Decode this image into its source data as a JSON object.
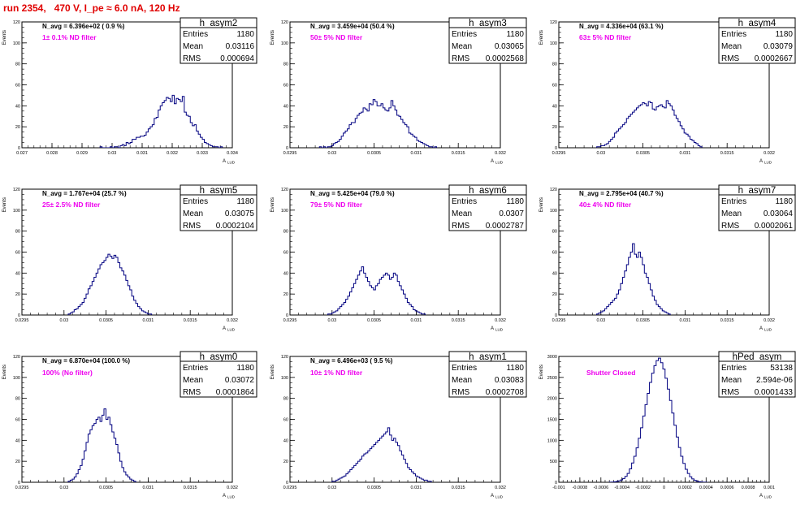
{
  "title": "run 2354,   470 V, I_pe ≈ 6.0 nA, 120 Hz",
  "colors": {
    "histogram": "#000080",
    "title": "#e00000",
    "filter_label": "#ee00ee"
  },
  "y_axis_label": "Events",
  "x_axis_label": "A",
  "x_axis_label_sub": "LUD",
  "chart_data": [
    {
      "type": "histogram",
      "name": "h_asym2",
      "navg_text": "N_avg = 6.396e+02 ( 0.9 %)",
      "filter_text": "1± 0.1% ND filter",
      "stats": [
        [
          "Entries",
          "1180"
        ],
        [
          "Mean",
          "0.03116"
        ],
        [
          "RMS",
          "0.000694"
        ]
      ],
      "xlim": [
        0.027,
        0.034
      ],
      "ylim": [
        0,
        120
      ],
      "xticks": [
        0.027,
        0.028,
        0.029,
        0.03,
        0.031,
        0.032,
        0.033,
        0.034
      ],
      "xtick_labels": [
        "0.027",
        "0.028",
        "0.029",
        "0.03",
        "0.031",
        "0.032",
        "0.033",
        "0.034"
      ],
      "yticks": [
        0,
        20,
        40,
        60,
        80,
        100,
        120
      ],
      "ytick_labels": [
        "0",
        "20",
        "40",
        "60",
        "80",
        "100",
        "120"
      ],
      "bin_start": 0.0296,
      "bin_width": 6.67e-05,
      "counts": [
        1,
        0,
        0,
        0,
        0,
        1,
        0,
        1,
        1,
        0,
        2,
        3,
        2,
        5,
        4,
        5,
        8,
        8,
        10,
        10,
        11,
        11,
        12,
        15,
        18,
        20,
        22,
        28,
        29,
        36,
        40,
        43,
        45,
        48,
        47,
        44,
        50,
        42,
        47,
        46,
        44,
        49,
        34,
        31,
        30,
        24,
        21,
        22,
        16,
        13,
        10,
        8,
        5,
        4,
        3,
        2,
        1,
        1,
        1,
        0,
        1
      ]
    },
    {
      "type": "histogram",
      "name": "h_asym3",
      "navg_text": "N_avg = 3.459e+04 (50.4 %)",
      "filter_text": "50± 5% ND filter",
      "stats": [
        [
          "Entries",
          "1180"
        ],
        [
          "Mean",
          "0.03065"
        ],
        [
          "RMS",
          "0.0002568"
        ]
      ],
      "xlim": [
        0.0295,
        0.032
      ],
      "ylim": [
        0,
        120
      ],
      "xticks": [
        0.0295,
        0.03,
        0.0305,
        0.031,
        0.0315,
        0.032
      ],
      "xtick_labels": [
        "0.0295",
        "0.03",
        "0.0305",
        "0.031",
        "0.0315",
        "0.032"
      ],
      "yticks": [
        0,
        20,
        40,
        60,
        80,
        100,
        120
      ],
      "ytick_labels": [
        "0",
        "20",
        "40",
        "60",
        "80",
        "100",
        "120"
      ],
      "bin_start": 0.02985,
      "bin_width": 2.36e-05,
      "counts": [
        1,
        0,
        1,
        0,
        1,
        1,
        2,
        4,
        5,
        6,
        8,
        11,
        14,
        16,
        18,
        22,
        24,
        24,
        28,
        31,
        33,
        34,
        38,
        37,
        35,
        42,
        41,
        46,
        44,
        40,
        40,
        42,
        38,
        36,
        35,
        38,
        45,
        40,
        36,
        31,
        30,
        27,
        24,
        22,
        20,
        14,
        13,
        11,
        10,
        7,
        6,
        5,
        4,
        3,
        2,
        1,
        1,
        0,
        1
      ]
    },
    {
      "type": "histogram",
      "name": "h_asym4",
      "navg_text": "N_avg = 4.336e+04 (63.1 %)",
      "filter_text": "63± 5% ND filter",
      "stats": [
        [
          "Entries",
          "1180"
        ],
        [
          "Mean",
          "0.03079"
        ],
        [
          "RMS",
          "0.0002667"
        ]
      ],
      "xlim": [
        0.0295,
        0.032
      ],
      "ylim": [
        0,
        120
      ],
      "xticks": [
        0.0295,
        0.03,
        0.0305,
        0.031,
        0.0315,
        0.032
      ],
      "xtick_labels": [
        "0.0295",
        "0.03",
        "0.0305",
        "0.031",
        "0.0315",
        "0.032"
      ],
      "yticks": [
        0,
        20,
        40,
        60,
        80,
        100,
        120
      ],
      "ytick_labels": [
        "0",
        "20",
        "40",
        "60",
        "80",
        "100",
        "120"
      ],
      "bin_start": 0.02995,
      "bin_width": 2.36e-05,
      "counts": [
        1,
        1,
        2,
        2,
        3,
        4,
        6,
        8,
        10,
        14,
        16,
        18,
        20,
        22,
        24,
        28,
        30,
        32,
        34,
        36,
        38,
        40,
        41,
        43,
        42,
        40,
        44,
        43,
        37,
        36,
        39,
        40,
        41,
        39,
        38,
        45,
        42,
        40,
        36,
        31,
        28,
        25,
        21,
        18,
        14,
        13,
        11,
        8,
        7,
        5,
        4,
        2,
        1
      ]
    },
    {
      "type": "histogram",
      "name": "h_asym5",
      "navg_text": "N_avg = 1.767e+04 (25.7 %)",
      "filter_text": "25± 2.5% ND filter",
      "stats": [
        [
          "Entries",
          "1180"
        ],
        [
          "Mean",
          "0.03075"
        ],
        [
          "RMS",
          "0.0002104"
        ]
      ],
      "xlim": [
        0.0295,
        0.032
      ],
      "ylim": [
        0,
        120
      ],
      "xticks": [
        0.0295,
        0.03,
        0.0305,
        0.031,
        0.0315,
        0.032
      ],
      "xtick_labels": [
        "0.0295",
        "0.03",
        "0.0305",
        "0.031",
        "0.0315",
        "0.032"
      ],
      "yticks": [
        0,
        20,
        40,
        60,
        80,
        100,
        120
      ],
      "ytick_labels": [
        "0",
        "20",
        "40",
        "60",
        "80",
        "100",
        "120"
      ],
      "bin_start": 0.03005,
      "bin_width": 2.36e-05,
      "counts": [
        1,
        2,
        3,
        5,
        6,
        8,
        10,
        12,
        16,
        20,
        25,
        28,
        32,
        36,
        40,
        44,
        48,
        50,
        52,
        55,
        58,
        56,
        54,
        57,
        55,
        50,
        45,
        42,
        38,
        33,
        28,
        24,
        18,
        14,
        11,
        8,
        6,
        4,
        3,
        2,
        1,
        1
      ]
    },
    {
      "type": "histogram",
      "name": "h_asym6",
      "navg_text": "N_avg = 5.425e+04 (79.0 %)",
      "filter_text": "79± 5% ND filter",
      "stats": [
        [
          "Entries",
          "1180"
        ],
        [
          "Mean",
          "0.0307"
        ],
        [
          "RMS",
          "0.0002787"
        ]
      ],
      "xlim": [
        0.0295,
        0.032
      ],
      "ylim": [
        0,
        120
      ],
      "xticks": [
        0.0295,
        0.03,
        0.0305,
        0.031,
        0.0315,
        0.032
      ],
      "xtick_labels": [
        "0.0295",
        "0.03",
        "0.0305",
        "0.031",
        "0.0315",
        "0.032"
      ],
      "yticks": [
        0,
        20,
        40,
        60,
        80,
        100,
        120
      ],
      "ytick_labels": [
        "0",
        "20",
        "40",
        "60",
        "80",
        "100",
        "120"
      ],
      "bin_start": 0.02995,
      "bin_width": 2.36e-05,
      "counts": [
        1,
        1,
        2,
        3,
        4,
        6,
        8,
        10,
        12,
        15,
        18,
        22,
        26,
        30,
        34,
        38,
        42,
        46,
        40,
        36,
        32,
        28,
        26,
        24,
        28,
        30,
        34,
        36,
        38,
        40,
        38,
        34,
        36,
        40,
        38,
        32,
        28,
        24,
        20,
        16,
        12,
        10,
        8,
        5,
        4,
        3,
        2,
        1,
        1
      ]
    },
    {
      "type": "histogram",
      "name": "h_asym7",
      "navg_text": "N_avg = 2.795e+04 (40.7 %)",
      "filter_text": "40± 4% ND filter",
      "stats": [
        [
          "Entries",
          "1180"
        ],
        [
          "Mean",
          "0.03064"
        ],
        [
          "RMS",
          "0.0002061"
        ]
      ],
      "xlim": [
        0.0295,
        0.032
      ],
      "ylim": [
        0,
        120
      ],
      "xticks": [
        0.0295,
        0.03,
        0.0305,
        0.031,
        0.0315,
        0.032
      ],
      "xtick_labels": [
        "0.0295",
        "0.03",
        "0.0305",
        "0.031",
        "0.0315",
        "0.032"
      ],
      "yticks": [
        0,
        20,
        40,
        60,
        80,
        100,
        120
      ],
      "ytick_labels": [
        "0",
        "20",
        "40",
        "60",
        "80",
        "100",
        "120"
      ],
      "bin_start": 0.02995,
      "bin_width": 2.36e-05,
      "counts": [
        1,
        2,
        3,
        4,
        6,
        8,
        10,
        12,
        14,
        16,
        20,
        24,
        30,
        36,
        42,
        48,
        55,
        60,
        68,
        58,
        55,
        60,
        55,
        48,
        40,
        36,
        30,
        24,
        18,
        14,
        10,
        8,
        6,
        4,
        3,
        2,
        1
      ]
    },
    {
      "type": "histogram",
      "name": "h_asym0",
      "navg_text": "N_avg = 6.870e+04 (100.0 %)",
      "filter_text": "100% (No filter)",
      "stats": [
        [
          "Entries",
          "1180"
        ],
        [
          "Mean",
          "0.03072"
        ],
        [
          "RMS",
          "0.0001864"
        ]
      ],
      "xlim": [
        0.0295,
        0.032
      ],
      "ylim": [
        0,
        120
      ],
      "xticks": [
        0.0295,
        0.03,
        0.0305,
        0.031,
        0.0315,
        0.032
      ],
      "xtick_labels": [
        "0.0295",
        "0.03",
        "0.0305",
        "0.031",
        "0.0315",
        "0.032"
      ],
      "yticks": [
        0,
        20,
        40,
        60,
        80,
        100,
        120
      ],
      "ytick_labels": [
        "0",
        "20",
        "40",
        "60",
        "80",
        "100",
        "120"
      ],
      "bin_start": 0.03005,
      "bin_width": 2.36e-05,
      "counts": [
        1,
        2,
        3,
        5,
        8,
        12,
        16,
        22,
        30,
        38,
        46,
        50,
        54,
        56,
        60,
        62,
        58,
        64,
        70,
        60,
        62,
        55,
        48,
        42,
        36,
        28,
        20,
        14,
        10,
        7,
        5,
        3,
        2,
        1
      ]
    },
    {
      "type": "histogram",
      "name": "h_asym1",
      "navg_text": "N_avg = 6.496e+03 ( 9.5 %)",
      "filter_text": "10± 1% ND filter",
      "stats": [
        [
          "Entries",
          "1180"
        ],
        [
          "Mean",
          "0.03083"
        ],
        [
          "RMS",
          "0.0002708"
        ]
      ],
      "xlim": [
        0.0295,
        0.032
      ],
      "ylim": [
        0,
        120
      ],
      "xticks": [
        0.0295,
        0.03,
        0.0305,
        0.031,
        0.0315,
        0.032
      ],
      "xtick_labels": [
        "0.0295",
        "0.03",
        "0.0305",
        "0.031",
        "0.0315",
        "0.032"
      ],
      "yticks": [
        0,
        20,
        40,
        60,
        80,
        100,
        120
      ],
      "ytick_labels": [
        "0",
        "20",
        "40",
        "60",
        "80",
        "100",
        "120"
      ],
      "bin_start": 0.03,
      "bin_width": 2.36e-05,
      "counts": [
        1,
        1,
        2,
        3,
        4,
        5,
        6,
        8,
        10,
        12,
        14,
        16,
        18,
        20,
        22,
        25,
        27,
        28,
        30,
        32,
        34,
        36,
        38,
        40,
        42,
        44,
        46,
        48,
        52,
        45,
        40,
        42,
        38,
        35,
        30,
        26,
        22,
        18,
        14,
        12,
        10,
        8,
        6,
        5,
        4,
        3,
        2,
        2,
        1,
        1
      ]
    },
    {
      "type": "histogram",
      "name": "hPed_asym",
      "navg_text": "",
      "filter_text": "Shutter Closed",
      "stats": [
        [
          "Entries",
          "53138"
        ],
        [
          "Mean",
          "2.594e-06"
        ],
        [
          "RMS",
          "0.0001433"
        ]
      ],
      "xlim": [
        -0.001,
        0.001
      ],
      "ylim": [
        0,
        3000
      ],
      "xticks": [
        -0.001,
        -0.0008,
        -0.0006,
        -0.0004,
        -0.0002,
        0,
        0.0002,
        0.0004,
        0.0006,
        0.0008,
        0.001
      ],
      "xtick_labels": [
        "-0.001",
        "-0.0008",
        "-0.0006",
        "-0.0004",
        "-0.0002",
        "0",
        "0.0002",
        "0.0004",
        "0.0006",
        "0.0008",
        "0.001"
      ],
      "yticks": [
        0,
        500,
        1000,
        1500,
        2000,
        2500,
        3000
      ],
      "ytick_labels": [
        "0",
        "500",
        "1000",
        "1500",
        "2000",
        "2500",
        "3000"
      ],
      "bin_start": -0.00052,
      "bin_width": 2.12e-05,
      "counts": [
        2,
        5,
        10,
        20,
        35,
        55,
        90,
        140,
        210,
        320,
        460,
        620,
        820,
        1050,
        1300,
        1580,
        1850,
        2120,
        2380,
        2600,
        2780,
        2900,
        2960,
        2850,
        2700,
        2480,
        2220,
        1950,
        1650,
        1360,
        1080,
        830,
        620,
        450,
        310,
        210,
        130,
        80,
        45,
        25,
        12,
        6,
        3,
        1
      ]
    }
  ]
}
